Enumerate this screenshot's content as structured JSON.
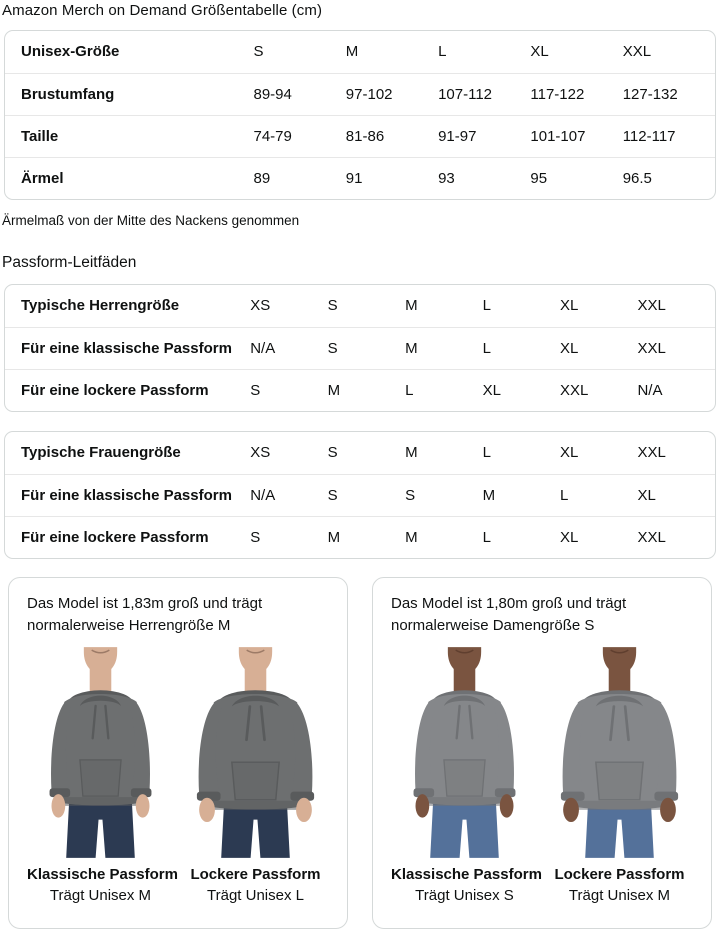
{
  "page": {
    "title": "Amazon Merch on Demand Größentabelle (cm)",
    "note": "Ärmelmaß von der Mitte des Nackens genommen",
    "fit_guides_title": "Passform-Leitfäden"
  },
  "size_table": {
    "rows": [
      {
        "label": "Unisex-Größe",
        "values": [
          "S",
          "M",
          "L",
          "XL",
          "XXL"
        ]
      },
      {
        "label": "Brustumfang",
        "values": [
          "89-94",
          "97-102",
          "107-112",
          "117-122",
          "127-132"
        ]
      },
      {
        "label": "Taille",
        "values": [
          "74-79",
          "81-86",
          "91-97",
          "101-107",
          "112-117"
        ]
      },
      {
        "label": "Ärmel",
        "values": [
          "89",
          "91",
          "93",
          "95",
          "96.5"
        ]
      }
    ]
  },
  "fit_tables": [
    {
      "name": "mens-fit-table",
      "rows": [
        {
          "label": "Typische Herrengröße",
          "values": [
            "XS",
            "S",
            "M",
            "L",
            "XL",
            "XXL"
          ]
        },
        {
          "label": "Für eine klassische Passform",
          "values": [
            "N/A",
            "S",
            "M",
            "L",
            "XL",
            "XXL"
          ]
        },
        {
          "label": "Für eine lockere Passform",
          "values": [
            "S",
            "M",
            "L",
            "XL",
            "XXL",
            "N/A"
          ]
        }
      ]
    },
    {
      "name": "womens-fit-table",
      "rows": [
        {
          "label": "Typische Frauengröße",
          "values": [
            "XS",
            "S",
            "M",
            "L",
            "XL",
            "XXL"
          ]
        },
        {
          "label": "Für eine klassische Passform",
          "values": [
            "N/A",
            "S",
            "S",
            "M",
            "L",
            "XL"
          ]
        },
        {
          "label": "Für eine lockere Passform",
          "values": [
            "S",
            "M",
            "M",
            "L",
            "XL",
            "XXL"
          ]
        }
      ]
    }
  ],
  "model_cards": [
    {
      "name": "male-model-card",
      "heading": "Das Model ist 1,83m groß und trägt normalerweise Herrengröße M",
      "colors": {
        "skin": "#d7af95",
        "hoodie": "#6d6f70",
        "hoodie_dark": "#595b5c",
        "jeans": "#2c3a52"
      },
      "figures": [
        {
          "fit_label": "Klassische Passform",
          "size_label": "Trägt Unisex M",
          "loose": false
        },
        {
          "fit_label": "Lockere Passform",
          "size_label": "Trägt Unisex L",
          "loose": true
        }
      ]
    },
    {
      "name": "female-model-card",
      "heading": "Das Model ist 1,80m groß und trägt normalerweise Damengröße S",
      "colors": {
        "skin": "#7a5440",
        "hoodie": "#85878a",
        "hoodie_dark": "#6f7174",
        "jeans": "#54719a"
      },
      "figures": [
        {
          "fit_label": "Klassische Passform",
          "size_label": "Trägt Unisex S",
          "loose": false
        },
        {
          "fit_label": "Lockere Passform",
          "size_label": "Trägt Unisex M",
          "loose": true
        }
      ]
    }
  ],
  "theme": {
    "text": "#0f1111",
    "border": "#d5d9d9",
    "divider": "#e7e7e7",
    "background": "#ffffff"
  }
}
